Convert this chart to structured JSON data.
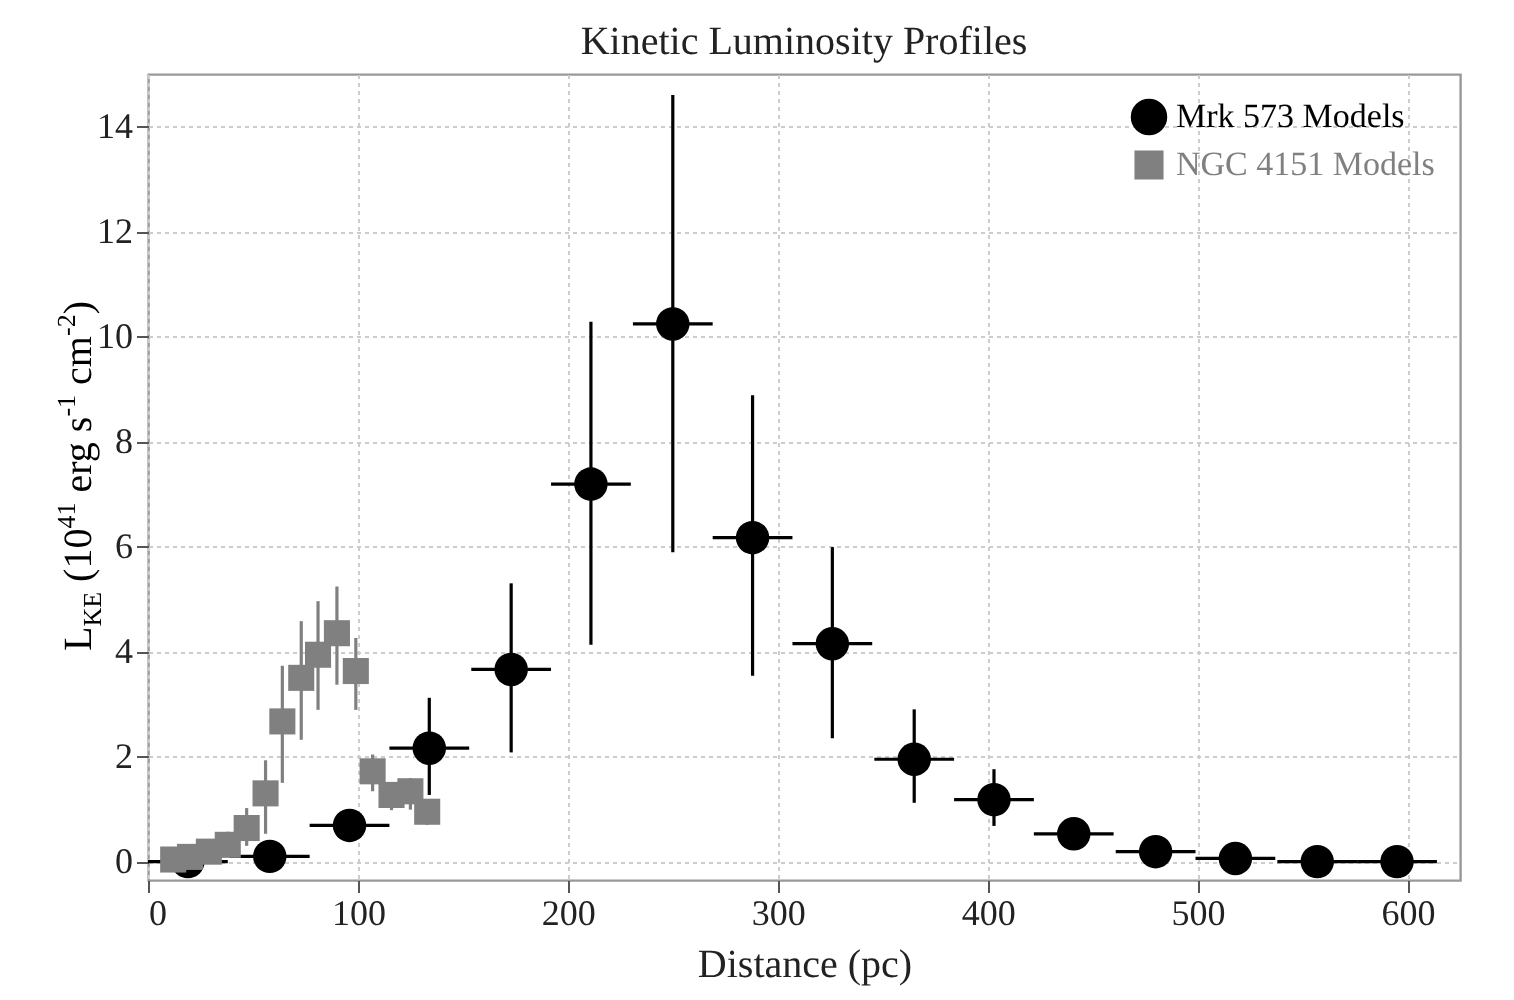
{
  "chart_data": {
    "type": "scatter",
    "title": "Kinetic Luminosity Profiles",
    "xlabel": "Distance (pc)",
    "ylabel": "L$_{KE}$ (10$^{41}$ erg s$^{-1}$ cm$^{-2}$)",
    "xlim": [
      0,
      625
    ],
    "ylim": [
      -0.35,
      15
    ],
    "xticks": [
      0,
      100,
      200,
      300,
      400,
      500,
      600
    ],
    "yticks": [
      0,
      2,
      4,
      6,
      8,
      10,
      12,
      14
    ],
    "grid": true,
    "legend": "top right",
    "series": [
      {
        "name": "Mrk 573 Models",
        "color": "#000000",
        "marker": "circle",
        "x": [
          19,
          58,
          96,
          134,
          173,
          211,
          250,
          288,
          326,
          365,
          403,
          441,
          480,
          518,
          557,
          595
        ],
        "values": [
          0.0,
          0.1,
          0.69,
          2.16,
          3.66,
          7.19,
          10.24,
          6.17,
          4.15,
          1.95,
          1.18,
          0.53,
          0.19,
          0.06,
          0.0,
          0.0
        ],
        "errors": [
          null,
          null,
          [
            0.45,
            0.97
          ],
          [
            1.27,
            3.12
          ],
          [
            2.08,
            5.3
          ],
          [
            4.13,
            10.28
          ],
          [
            5.89,
            14.6
          ],
          [
            3.54,
            8.88
          ],
          [
            2.35,
            5.99
          ],
          [
            1.12,
            2.9
          ],
          [
            0.68,
            1.76
          ],
          null,
          null,
          null,
          null,
          null
        ],
        "xerrors": [
          19,
          19,
          19,
          19,
          19,
          19,
          19,
          19,
          19,
          19,
          19,
          19,
          19,
          19,
          19,
          19
        ]
      },
      {
        "name": "NGC 4151 Models",
        "color": "#808080",
        "marker": "square",
        "x": [
          12,
          20,
          29,
          38,
          47,
          56,
          64,
          73,
          81,
          90,
          99,
          107,
          116,
          125,
          133
        ],
        "values": [
          0.04,
          0.09,
          0.19,
          0.32,
          0.64,
          1.3,
          2.67,
          3.5,
          3.94,
          4.35,
          3.63,
          1.72,
          1.27,
          1.34,
          0.95
        ],
        "errors": [
          null,
          null,
          null,
          [
            0.32,
            0.57
          ],
          [
            0.3,
            1.02
          ],
          [
            0.53,
            1.93
          ],
          [
            1.5,
            3.73
          ],
          [
            2.32,
            4.58
          ],
          [
            2.89,
            4.96
          ],
          [
            3.37,
            5.24
          ],
          [
            2.89,
            4.26
          ],
          [
            1.34,
            2.04
          ],
          [
            0.98,
            1.5
          ],
          [
            0.99,
            1.59
          ],
          [
            0.7,
            1.12
          ]
        ]
      }
    ]
  }
}
